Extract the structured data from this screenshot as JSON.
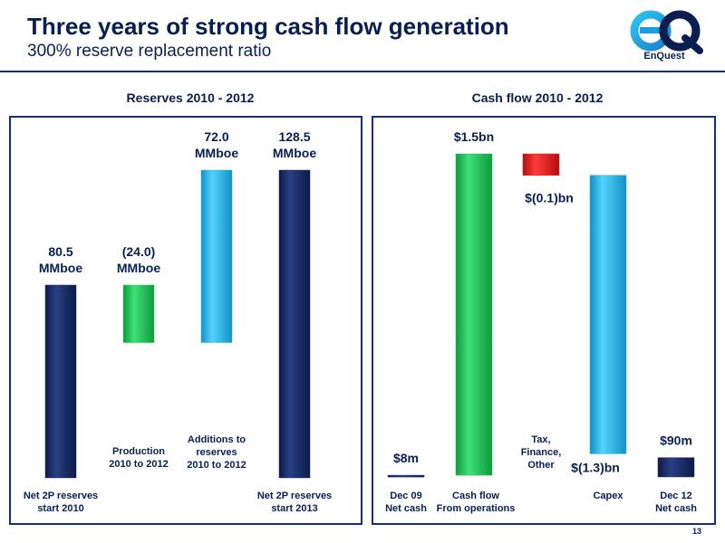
{
  "header": {
    "title": "Three years of strong cash flow generation",
    "subtitle": "300% reserve replacement ratio"
  },
  "logo": {
    "mark": "eQ",
    "name": "EnQuest"
  },
  "page_number": "13",
  "colors": {
    "navy": "#1a2d6d",
    "green": "#22c25a",
    "cyan": "#22b4ea",
    "red": "#e41c1c"
  },
  "chart_data": [
    {
      "type": "bar",
      "subtype": "waterfall",
      "title": "Reserves 2010 - 2012",
      "unit": "MMboe",
      "categories": [
        [
          "Net 2P reserves",
          "start 2010"
        ],
        [
          "Production",
          "2010 to 2012"
        ],
        [
          "Additions to",
          "reserves",
          "2010 to 2012"
        ],
        [
          "Net 2P reserves",
          "start 2013"
        ]
      ],
      "steps": [
        {
          "kind": "total",
          "value": 80.5,
          "label": [
            "80.5",
            "MMboe"
          ],
          "color": "navy"
        },
        {
          "kind": "delta",
          "value": -24.0,
          "label": [
            "(24.0)",
            "MMboe"
          ],
          "color": "green"
        },
        {
          "kind": "delta",
          "value": 72.0,
          "label": [
            "72.0",
            "MMboe"
          ],
          "color": "cyan"
        },
        {
          "kind": "total",
          "value": 128.5,
          "label": [
            "128.5",
            "MMboe"
          ],
          "color": "navy"
        }
      ],
      "ylim": [
        0,
        128.5
      ]
    },
    {
      "type": "bar",
      "subtype": "waterfall",
      "title": "Cash flow 2010 - 2012",
      "unit": "$bn",
      "categories": [
        [
          "Dec 09",
          "Net cash"
        ],
        [
          "Cash flow",
          "From operations"
        ],
        [
          "Tax,",
          "Finance,",
          "Other"
        ],
        [
          "Capex"
        ],
        [
          "Dec 12",
          "Net cash"
        ]
      ],
      "steps": [
        {
          "kind": "total",
          "value": 0.008,
          "label": [
            "$8m"
          ],
          "color": "navy"
        },
        {
          "kind": "delta",
          "value": 1.5,
          "label": [
            "$1.5bn"
          ],
          "color": "green"
        },
        {
          "kind": "delta",
          "value": -0.1,
          "label": [
            "$(0.1)bn"
          ],
          "color": "red"
        },
        {
          "kind": "delta",
          "value": -1.3,
          "label": [
            "$(1.3)bn"
          ],
          "color": "cyan"
        },
        {
          "kind": "total",
          "value": 0.09,
          "label": [
            "$90m"
          ],
          "color": "navy"
        }
      ],
      "ylim": [
        0,
        1.508
      ]
    }
  ]
}
